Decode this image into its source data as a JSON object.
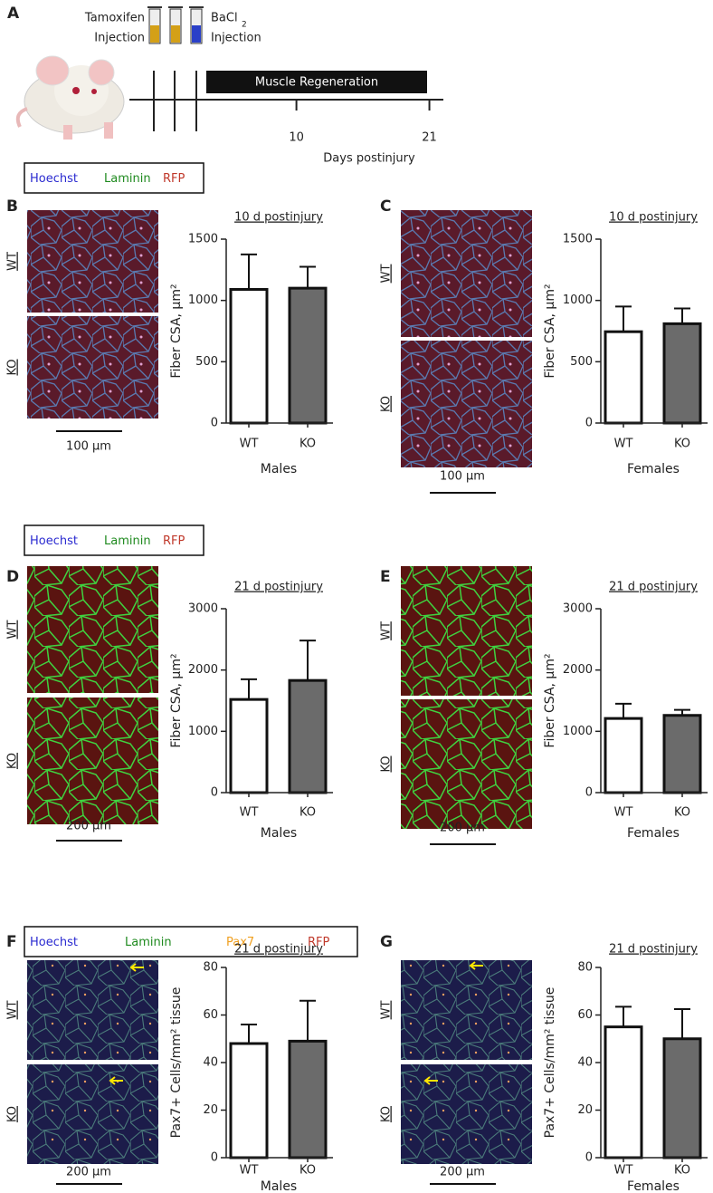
{
  "figure": {
    "panel_labels": [
      "A",
      "B",
      "C",
      "D",
      "E",
      "F",
      "G"
    ],
    "timeline": {
      "drug1": "Tamoxifen",
      "drug1_action": "Injection",
      "drug2": "BaCl",
      "drug2_sub": "2",
      "drug2_action": "Injection",
      "phase": "Muscle Regeneration",
      "day_ticks": [
        10,
        21
      ],
      "axis_label": "Days postinjury"
    },
    "stain_legends": [
      {
        "items": [
          {
            "name": "Hoechst",
            "color": "#2a2ad0"
          },
          {
            "name": "Laminin",
            "color": "#1f8a1f"
          },
          {
            "name": "RFP",
            "color": "#c0392b"
          }
        ]
      },
      {
        "items": [
          {
            "name": "Hoechst",
            "color": "#2a2ad0"
          },
          {
            "name": "Laminin",
            "color": "#1f8a1f"
          },
          {
            "name": "RFP",
            "color": "#c0392b"
          }
        ]
      },
      {
        "items": [
          {
            "name": "Hoechst",
            "color": "#2a2ad0"
          },
          {
            "name": "Laminin",
            "color": "#1f8a1f"
          },
          {
            "name": "Pax7",
            "color": "#f0a020"
          },
          {
            "name": "RFP",
            "color": "#c0392b"
          }
        ]
      }
    ],
    "image_labels": [
      "WT",
      "KO"
    ],
    "scale_bars": [
      "100 µm",
      "100 µm",
      "200 µm",
      "200 µm",
      "200 µm",
      "200 µm"
    ]
  },
  "chart_data": [
    {
      "type": "bar",
      "title": "10 d postinjury",
      "categories": [
        "WT",
        "KO"
      ],
      "values": [
        1090,
        1100
      ],
      "errors": [
        285,
        175
      ],
      "colors": [
        "#ffffff",
        "#6b6b6b"
      ],
      "xlabel": "Males",
      "ylabel": "Fiber  CSA, µm²",
      "ylim": [
        0,
        1500
      ],
      "yticks": [
        0,
        500,
        1000,
        1500
      ]
    },
    {
      "type": "bar",
      "title": "10 d postinjury",
      "categories": [
        "WT",
        "KO"
      ],
      "values": [
        745,
        810
      ],
      "errors": [
        205,
        125
      ],
      "colors": [
        "#ffffff",
        "#6b6b6b"
      ],
      "xlabel": "Females",
      "ylabel": "Fiber  CSA, µm²",
      "ylim": [
        0,
        1500
      ],
      "yticks": [
        0,
        500,
        1000,
        1500
      ]
    },
    {
      "type": "bar",
      "title": "21 d postinjury",
      "categories": [
        "WT",
        "KO"
      ],
      "values": [
        1520,
        1830
      ],
      "errors": [
        330,
        650
      ],
      "colors": [
        "#ffffff",
        "#6b6b6b"
      ],
      "xlabel": "Males",
      "ylabel": "Fiber  CSA, µm²",
      "ylim": [
        0,
        3000
      ],
      "yticks": [
        0,
        1000,
        2000,
        3000
      ]
    },
    {
      "type": "bar",
      "title": "21 d postinjury",
      "categories": [
        "WT",
        "KO"
      ],
      "values": [
        1210,
        1260
      ],
      "errors": [
        240,
        90
      ],
      "colors": [
        "#ffffff",
        "#6b6b6b"
      ],
      "xlabel": "Females",
      "ylabel": "Fiber  CSA, µm²",
      "ylim": [
        0,
        3000
      ],
      "yticks": [
        0,
        1000,
        2000,
        3000
      ]
    },
    {
      "type": "bar",
      "title": "21 d postinjury",
      "categories": [
        "WT",
        "KO"
      ],
      "values": [
        48,
        49
      ],
      "errors": [
        8,
        17
      ],
      "colors": [
        "#ffffff",
        "#6b6b6b"
      ],
      "xlabel": "Males",
      "ylabel": "Pax7+ Cells/mm² tissue",
      "ylim": [
        0,
        80
      ],
      "yticks": [
        0,
        20,
        40,
        60,
        80
      ]
    },
    {
      "type": "bar",
      "title": "21 d postinjury",
      "categories": [
        "WT",
        "KO"
      ],
      "values": [
        55,
        50
      ],
      "errors": [
        8.5,
        12.5
      ],
      "colors": [
        "#ffffff",
        "#6b6b6b"
      ],
      "xlabel": "Females",
      "ylabel": "Pax7+ Cells/mm² tissue",
      "ylim": [
        0,
        80
      ],
      "yticks": [
        0,
        20,
        40,
        60,
        80
      ]
    }
  ]
}
